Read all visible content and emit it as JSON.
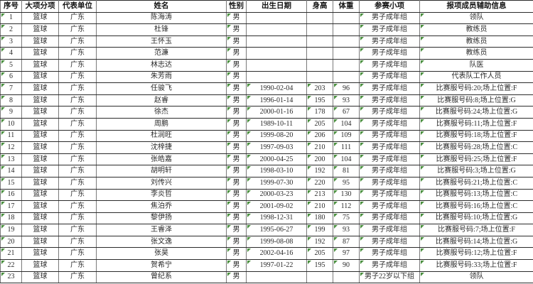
{
  "table": {
    "headers": [
      "序号",
      "大项分项",
      "代表单位",
      "姓名",
      "性别",
      "出生日期",
      "身高",
      "体重",
      "参赛小项",
      "报项成员辅助信息"
    ],
    "column_keys": [
      "no",
      "sport",
      "unit",
      "name",
      "gender",
      "birthdate",
      "height",
      "weight",
      "event",
      "info"
    ],
    "indicator_columns": [
      0,
      4,
      5,
      6,
      7,
      8,
      9
    ],
    "rows": [
      [
        "1",
        "篮球",
        "广东",
        "陈海涛",
        "男",
        "",
        "",
        "",
        "男子成年组",
        "领队"
      ],
      [
        "2",
        "篮球",
        "广东",
        "杜锋",
        "男",
        "",
        "",
        "",
        "男子成年组",
        "教练员"
      ],
      [
        "3",
        "篮球",
        "广东",
        "王怀玉",
        "男",
        "",
        "",
        "",
        "男子成年组",
        "教练员"
      ],
      [
        "4",
        "篮球",
        "广东",
        "范濂",
        "男",
        "",
        "",
        "",
        "男子成年组",
        "教练员"
      ],
      [
        "5",
        "篮球",
        "广东",
        "林志达",
        "男",
        "",
        "",
        "",
        "男子成年组",
        "队医"
      ],
      [
        "6",
        "篮球",
        "广东",
        "朱芳雨",
        "男",
        "",
        "",
        "",
        "男子成年组",
        "代表队工作人员"
      ],
      [
        "7",
        "篮球",
        "广东",
        "任骏飞",
        "男",
        "1990-02-04",
        "203",
        "96",
        "男子成年组",
        "比赛服号码:20;场上位置:F"
      ],
      [
        "8",
        "篮球",
        "广东",
        "赵睿",
        "男",
        "1996-01-14",
        "195",
        "93",
        "男子成年组",
        "比赛服号码:8;场上位置:G"
      ],
      [
        "9",
        "篮球",
        "广东",
        "徐杰",
        "男",
        "2000-01-16",
        "178",
        "67",
        "男子成年组",
        "比赛服号码:24;场上位置:G"
      ],
      [
        "10",
        "篮球",
        "广东",
        "周鹏",
        "男",
        "1989-10-11",
        "205",
        "104",
        "男子成年组",
        "比赛服号码:11;场上位置:F"
      ],
      [
        "11",
        "篮球",
        "广东",
        "杜润旺",
        "男",
        "1999-08-20",
        "206",
        "109",
        "男子成年组",
        "比赛服号码:18;场上位置:F"
      ],
      [
        "12",
        "篮球",
        "广东",
        "沈梓捷",
        "男",
        "1997-09-03",
        "210",
        "111",
        "男子成年组",
        "比赛服号码:28;场上位置:C"
      ],
      [
        "13",
        "篮球",
        "广东",
        "张皓嘉",
        "男",
        "2000-04-25",
        "200",
        "104",
        "男子成年组",
        "比赛服号码:25;场上位置:F"
      ],
      [
        "14",
        "篮球",
        "广东",
        "胡明轩",
        "男",
        "1998-03-10",
        "192",
        "81",
        "男子成年组",
        "比赛服号码:3;场上位置:G"
      ],
      [
        "15",
        "篮球",
        "广东",
        "刘传兴",
        "男",
        "1999-07-30",
        "220",
        "95",
        "男子成年组",
        "比赛服号码:21;场上位置:C"
      ],
      [
        "16",
        "篮球",
        "广东",
        "李炎哲",
        "男",
        "2000-03-23",
        "213",
        "130",
        "男子成年组",
        "比赛服号码:13;场上位置:C"
      ],
      [
        "17",
        "篮球",
        "广东",
        "焦泊乔",
        "男",
        "2001-09-02",
        "210",
        "112",
        "男子成年组",
        "比赛服号码:16;场上位置:C"
      ],
      [
        "18",
        "篮球",
        "广东",
        "黎伊扬",
        "男",
        "1998-12-31",
        "180",
        "75",
        "男子成年组",
        "比赛服号码:10;场上位置:G"
      ],
      [
        "19",
        "篮球",
        "广东",
        "王睿泽",
        "男",
        "1995-06-27",
        "199",
        "93",
        "男子成年组",
        "比赛服号码:7;场上位置:F"
      ],
      [
        "20",
        "篮球",
        "广东",
        "张文逸",
        "男",
        "1999-08-08",
        "192",
        "87",
        "男子成年组",
        "比赛服号码:14;场上位置:G"
      ],
      [
        "21",
        "篮球",
        "广东",
        "张昊",
        "男",
        "2002-04-16",
        "205",
        "97",
        "男子成年组",
        "比赛服号码:12;场上位置:F"
      ],
      [
        "22",
        "篮球",
        "广东",
        "贺希宁",
        "男",
        "1997-01-22",
        "195",
        "90",
        "男子成年组",
        "比赛服号码:33;场上位置:F"
      ],
      [
        "23",
        "篮球",
        "广东",
        "曾纪系",
        "男",
        "",
        "",
        "",
        "男子22岁以下组",
        "领队"
      ]
    ]
  },
  "colors": {
    "background": "#ffffff",
    "header_text": "#111111",
    "cell_text": "#2a2a2a",
    "indicator": "#4a8f3f"
  }
}
